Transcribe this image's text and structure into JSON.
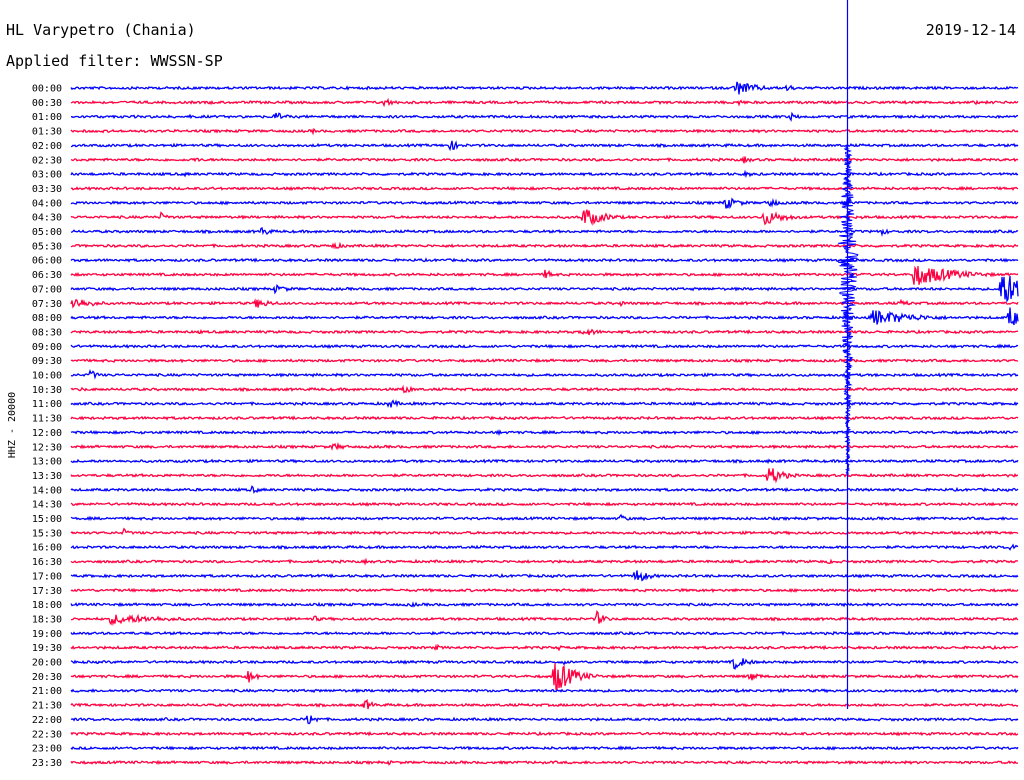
{
  "header": {
    "station": "HL Varypetro (Chania)",
    "filter": "Applied filter: WWSSN-SP",
    "date": "2019-12-14"
  },
  "chart_data": {
    "type": "line",
    "title": "HL Varypetro (Chania)",
    "subtitle": "Applied filter: WWSSN-SP",
    "date": "2019-12-14",
    "ylabel": "HHZ - 20000",
    "xlabel": "",
    "colors": [
      "#0000ff",
      "#ff0040"
    ],
    "grid": false,
    "legend": "none",
    "rows": [
      {
        "label": "00:00",
        "events": [
          [
            0.7,
            20,
            1.0
          ],
          [
            0.755,
            10,
            0.45
          ]
        ]
      },
      {
        "label": "00:30",
        "events": [
          [
            0.33,
            10,
            0.55
          ],
          [
            0.145,
            14,
            0.2
          ],
          [
            0.705,
            6,
            0.4
          ],
          [
            0.955,
            6,
            0.25
          ]
        ]
      },
      {
        "label": "01:00",
        "events": [
          [
            0.215,
            10,
            0.65
          ],
          [
            0.125,
            12,
            0.2
          ],
          [
            0.76,
            8,
            0.45
          ]
        ]
      },
      {
        "label": "01:30",
        "events": [
          [
            0.255,
            6,
            0.3
          ],
          [
            0.74,
            6,
            0.15
          ]
        ]
      },
      {
        "label": "02:00",
        "events": [
          [
            0.4,
            10,
            0.65
          ],
          [
            0.26,
            10,
            0.15
          ],
          [
            0.69,
            6,
            0.25
          ]
        ]
      },
      {
        "label": "02:30",
        "events": [
          [
            0.13,
            10,
            0.3
          ],
          [
            0.71,
            8,
            0.45
          ]
        ]
      },
      {
        "label": "03:00",
        "events": [
          [
            0.12,
            6,
            0.25
          ],
          [
            0.71,
            14,
            0.3
          ]
        ]
      },
      {
        "label": "03:30",
        "events": [
          [
            0.22,
            12,
            0.15
          ]
        ]
      },
      {
        "label": "04:00",
        "events": [
          [
            0.69,
            14,
            0.8
          ],
          [
            0.735,
            12,
            0.55
          ],
          [
            0.49,
            8,
            0.2
          ],
          [
            0.3,
            6,
            0.15
          ]
        ]
      },
      {
        "label": "04:30",
        "events": [
          [
            0.54,
            20,
            1.2
          ],
          [
            0.73,
            20,
            1.0
          ],
          [
            0.095,
            8,
            0.55
          ],
          [
            0.67,
            8,
            0.2
          ],
          [
            0.835,
            14,
            0.2
          ]
        ]
      },
      {
        "label": "05:00",
        "events": [
          [
            0.2,
            10,
            0.6
          ],
          [
            0.855,
            10,
            0.4
          ]
        ]
      },
      {
        "label": "05:30",
        "events": [
          [
            0.275,
            16,
            0.4
          ]
        ]
      },
      {
        "label": "06:00",
        "events": [
          [
            0.425,
            8,
            0.2
          ],
          [
            0.665,
            10,
            0.15
          ]
        ]
      },
      {
        "label": "06:30",
        "events": [
          [
            0.5,
            10,
            0.55
          ],
          [
            0.89,
            36,
            1.4
          ]
        ]
      },
      {
        "label": "07:00",
        "events": [
          [
            0.215,
            14,
            0.5
          ],
          [
            0.98,
            40,
            2.0
          ]
        ]
      },
      {
        "label": "07:30",
        "events": [
          [
            0.0,
            20,
            0.8
          ],
          [
            0.195,
            16,
            0.6
          ],
          [
            0.58,
            6,
            0.35
          ],
          [
            0.76,
            8,
            0.2
          ],
          [
            0.875,
            14,
            0.35
          ]
        ]
      },
      {
        "label": "08:00",
        "events": [
          [
            0.845,
            40,
            1.0
          ],
          [
            0.99,
            12,
            1.4
          ]
        ]
      },
      {
        "label": "08:30",
        "events": [
          [
            0.54,
            16,
            0.5
          ],
          [
            0.135,
            8,
            0.2
          ],
          [
            0.625,
            12,
            0.2
          ]
        ]
      },
      {
        "label": "09:00",
        "events": [
          [
            0.57,
            12,
            0.15
          ]
        ]
      },
      {
        "label": "09:30",
        "events": [
          [
            0.64,
            8,
            0.15
          ]
        ]
      },
      {
        "label": "10:00",
        "events": [
          [
            0.02,
            8,
            0.6
          ],
          [
            0.66,
            8,
            0.2
          ]
        ]
      },
      {
        "label": "10:30",
        "events": [
          [
            0.35,
            8,
            0.65
          ],
          [
            0.01,
            6,
            0.3
          ],
          [
            0.835,
            8,
            0.3
          ]
        ]
      },
      {
        "label": "11:00",
        "events": [
          [
            0.335,
            10,
            0.6
          ],
          [
            0.45,
            8,
            0.4
          ],
          [
            0.22,
            10,
            0.15
          ]
        ]
      },
      {
        "label": "11:30",
        "events": []
      },
      {
        "label": "12:00",
        "events": [
          [
            0.25,
            8,
            0.15
          ],
          [
            0.45,
            6,
            0.3
          ]
        ]
      },
      {
        "label": "12:30",
        "events": [
          [
            0.275,
            18,
            0.4
          ],
          [
            0.17,
            20,
            0.15
          ]
        ]
      },
      {
        "label": "13:00",
        "events": [
          [
            0.49,
            12,
            0.15
          ],
          [
            0.735,
            12,
            0.2
          ]
        ]
      },
      {
        "label": "13:30",
        "events": [
          [
            0.735,
            14,
            1.3
          ],
          [
            0.58,
            6,
            0.2
          ],
          [
            0.465,
            6,
            0.15
          ],
          [
            0.93,
            6,
            0.15
          ]
        ]
      },
      {
        "label": "14:00",
        "events": [
          [
            0.19,
            8,
            0.5
          ],
          [
            0.09,
            6,
            0.15
          ]
        ]
      },
      {
        "label": "14:30",
        "events": [
          [
            0.16,
            6,
            0.15
          ]
        ]
      },
      {
        "label": "15:00",
        "events": [
          [
            0.58,
            6,
            0.6
          ],
          [
            0.2,
            6,
            0.15
          ]
        ]
      },
      {
        "label": "15:30",
        "events": [
          [
            0.055,
            6,
            0.55
          ],
          [
            0.385,
            6,
            0.15
          ]
        ]
      },
      {
        "label": "16:00",
        "events": [
          [
            0.99,
            14,
            0.35
          ],
          [
            0.48,
            8,
            0.15
          ]
        ]
      },
      {
        "label": "16:30",
        "events": [
          [
            0.31,
            6,
            0.25
          ],
          [
            0.8,
            6,
            0.35
          ],
          [
            0.24,
            6,
            0.15
          ]
        ]
      },
      {
        "label": "17:00",
        "events": [
          [
            0.595,
            12,
            1.0
          ],
          [
            0.43,
            6,
            0.15
          ]
        ]
      },
      {
        "label": "17:30",
        "events": [
          [
            0.2,
            6,
            0.15
          ]
        ]
      },
      {
        "label": "18:00",
        "events": [
          [
            0.36,
            8,
            0.3
          ],
          [
            0.81,
            8,
            0.25
          ],
          [
            0.54,
            6,
            0.15
          ]
        ]
      },
      {
        "label": "18:30",
        "events": [
          [
            0.04,
            56,
            0.6
          ],
          [
            0.255,
            8,
            0.45
          ],
          [
            0.555,
            8,
            0.9
          ],
          [
            0.45,
            6,
            0.2
          ]
        ]
      },
      {
        "label": "19:00",
        "events": [
          [
            0.16,
            8,
            0.15
          ],
          [
            0.53,
            6,
            0.15
          ]
        ]
      },
      {
        "label": "19:30",
        "events": [
          [
            0.385,
            6,
            0.4
          ],
          [
            0.515,
            6,
            0.3
          ]
        ]
      },
      {
        "label": "20:00",
        "events": [
          [
            0.7,
            12,
            0.9
          ],
          [
            0.52,
            6,
            0.3
          ]
        ]
      },
      {
        "label": "20:30",
        "events": [
          [
            0.51,
            18,
            2.1
          ],
          [
            0.185,
            8,
            1.0
          ],
          [
            0.715,
            10,
            0.7
          ]
        ]
      },
      {
        "label": "21:00",
        "events": [
          [
            0.165,
            6,
            0.2
          ],
          [
            0.295,
            6,
            0.15
          ]
        ]
      },
      {
        "label": "21:30",
        "events": [
          [
            0.31,
            8,
            0.75
          ],
          [
            0.14,
            6,
            0.2
          ],
          [
            0.7,
            6,
            0.15
          ],
          [
            0.85,
            6,
            0.15
          ]
        ]
      },
      {
        "label": "22:00",
        "events": [
          [
            0.25,
            8,
            0.85
          ],
          [
            0.1,
            6,
            0.2
          ]
        ]
      },
      {
        "label": "22:30",
        "events": []
      },
      {
        "label": "23:00",
        "events": []
      },
      {
        "label": "23:30",
        "events": [
          [
            0.335,
            6,
            0.3
          ]
        ]
      }
    ],
    "major_event": {
      "x": 0.82,
      "start_row": 8,
      "end_row": 27,
      "line_rows": [
        0,
        43
      ]
    }
  }
}
